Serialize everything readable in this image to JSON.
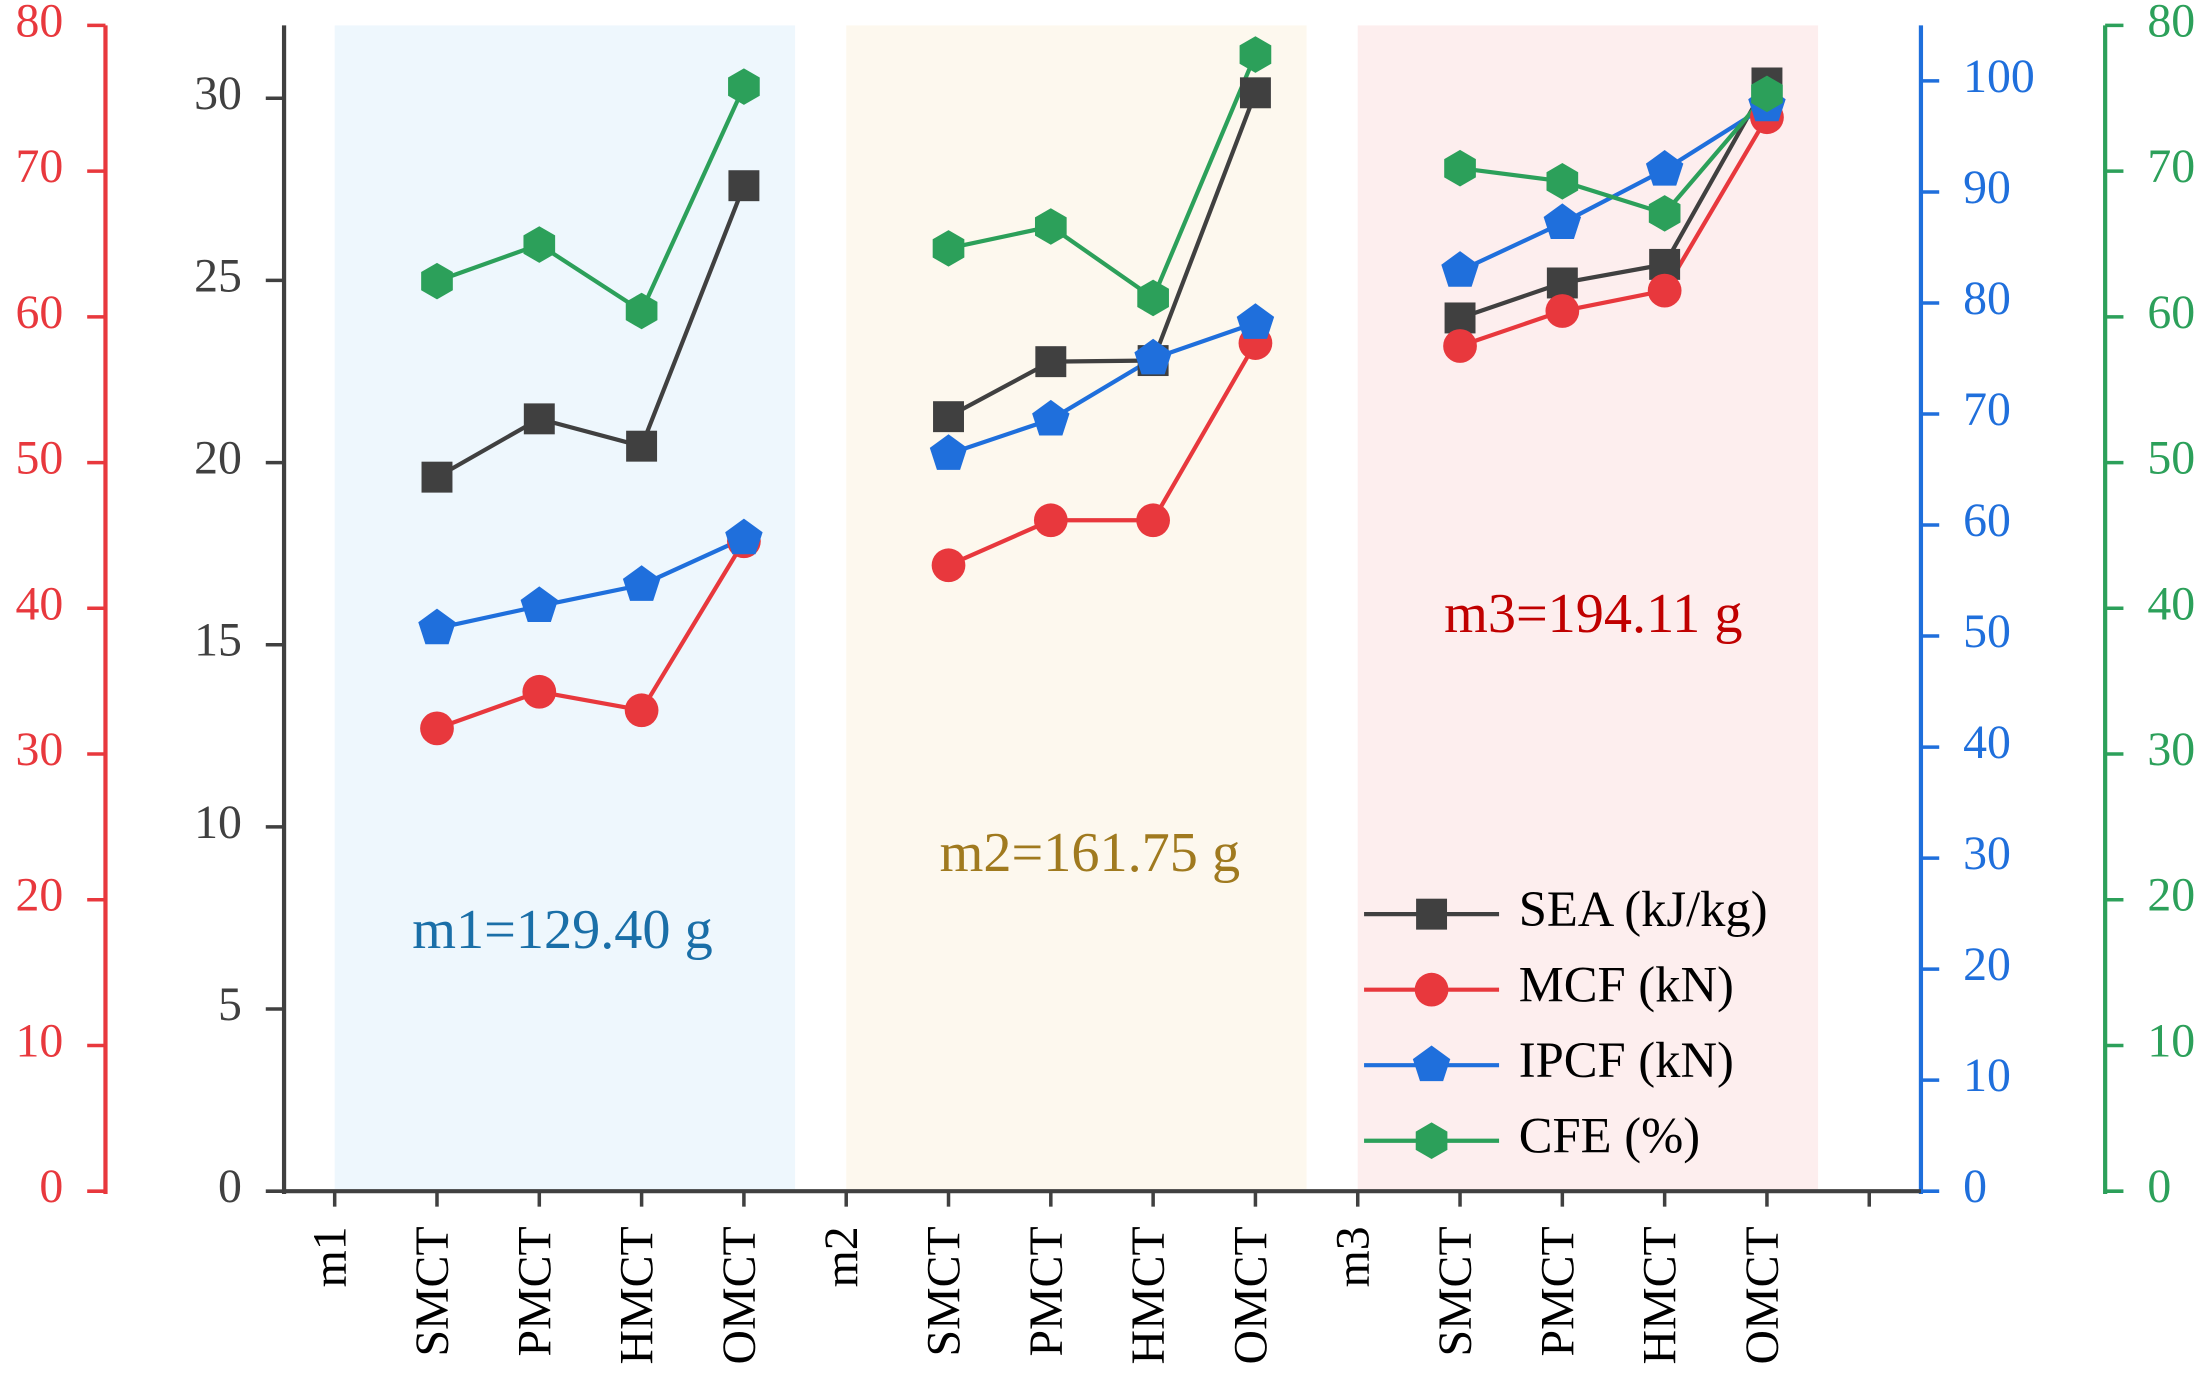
{
  "chart_data": {
    "type": "line",
    "categories": [
      "m1",
      "SMCT",
      "PMCT",
      "HMCT",
      "OMCT",
      "m2",
      "SMCT",
      "PMCT",
      "HMCT",
      "OMCT",
      "m3",
      "SMCT",
      "PMCT",
      "HMCT",
      "OMCT",
      null
    ],
    "axes": [
      {
        "lim": [
          0,
          80
        ],
        "ticks": [
          0,
          10,
          20,
          30,
          40,
          50,
          60,
          70,
          80
        ],
        "color": "#e8383d"
      },
      {
        "lim": [
          0,
          32
        ],
        "ticks": [
          0,
          5,
          10,
          15,
          20,
          25,
          30
        ],
        "color": "#404040"
      },
      {
        "lim": [
          0,
          105
        ],
        "ticks": [
          0,
          10,
          20,
          30,
          40,
          50,
          60,
          70,
          80,
          90,
          100
        ],
        "color": "#1f6fdc"
      },
      {
        "lim": [
          0,
          80
        ],
        "ticks": [
          0,
          10,
          20,
          30,
          40,
          50,
          60,
          70,
          80
        ],
        "color": "#2ca05a"
      }
    ],
    "series": [
      {
        "name": "SEA (kJ/kg)",
        "color": "#404040",
        "marker": "square",
        "axis": 1,
        "values": [
          null,
          19.6,
          21.2,
          20.45,
          27.6,
          null,
          21.26,
          22.77,
          22.8,
          30.15,
          null,
          23.97,
          24.93,
          25.44,
          30.42,
          null
        ]
      },
      {
        "name": "MCF (kN)",
        "color": "#e8383d",
        "marker": "circle",
        "axis": 0,
        "values": [
          null,
          31.76,
          34.27,
          33.0,
          44.6,
          null,
          42.95,
          46.04,
          46.04,
          58.2,
          null,
          58.0,
          60.4,
          61.8,
          73.7,
          null
        ]
      },
      {
        "name": "IPCF (kN)",
        "color": "#1f6fdc",
        "marker": "pentagon",
        "axis": 2,
        "values": [
          null,
          50.7,
          52.7,
          54.6,
          58.8,
          null,
          66.4,
          69.5,
          75.0,
          78.2,
          null,
          82.9,
          87.2,
          92.0,
          97.8,
          null
        ]
      },
      {
        "name": "CFE (%)",
        "color": "#2ca05a",
        "marker": "hexagon",
        "axis": 3,
        "values": [
          null,
          62.45,
          64.96,
          60.4,
          75.8,
          null,
          64.7,
          66.2,
          61.3,
          78.0,
          null,
          70.2,
          69.3,
          67.1,
          75.3,
          null
        ]
      }
    ],
    "annotations": [
      {
        "text": "m1=129.40 g",
        "color": "#1a6fa8"
      },
      {
        "text": "m2=161.75 g",
        "color": "#a07a1f"
      },
      {
        "text": "m3=194.11 g",
        "color": "#c00000"
      }
    ],
    "region_colors": [
      "#eef7fd",
      "#fdf8ee",
      "#fdeeee"
    ],
    "legend": "lower right"
  }
}
